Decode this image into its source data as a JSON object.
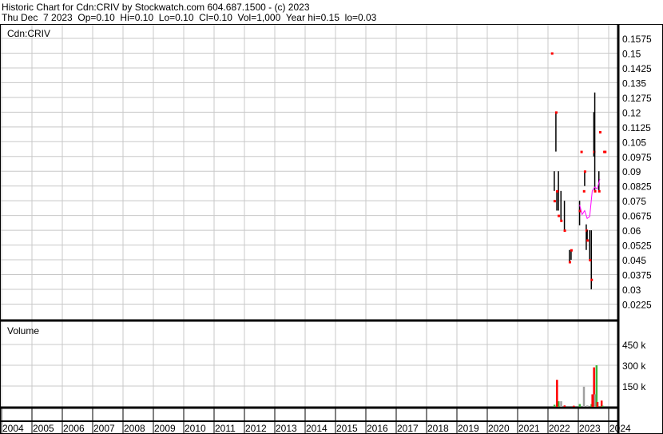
{
  "header": {
    "title": "Historic Chart for Cdn:CRIV by Stockwatch.com 604.687.1500 - (c) 2023",
    "quote": "Thu Dec  7 2023  Op=0.10  Hi=0.10  Lo=0.10  Cl=0.10  Vol=1,000  Year hi=0.15  lo=0.03"
  },
  "chart_data": [
    {
      "type": "ohlc",
      "title": "Cdn:CRIV",
      "ylim": [
        0.0225,
        0.1575
      ],
      "yticks": [
        "0.1575",
        "0.15",
        "0.1425",
        "0.135",
        "0.1275",
        "0.12",
        "0.1125",
        "0.105",
        "0.0975",
        "0.09",
        "0.0825",
        "0.075",
        "0.0675",
        "0.06",
        "0.0525",
        "0.045",
        "0.0375",
        "0.03",
        "0.0225"
      ],
      "bars": [
        {
          "date": "2022-02",
          "high": 0.15,
          "low": 0.15,
          "close": 0.15
        },
        {
          "date": "2022-03",
          "high": 0.12,
          "low": 0.1,
          "close": 0.12
        },
        {
          "date": "2022-03",
          "high": 0.09,
          "low": 0.08,
          "close": 0.075
        },
        {
          "date": "2022-04",
          "high": 0.09,
          "low": 0.07,
          "close": 0.0675
        },
        {
          "date": "2022-04",
          "high": 0.08,
          "low": 0.07,
          "close": 0.08
        },
        {
          "date": "2022-05",
          "high": 0.08,
          "low": 0.065,
          "close": 0.065
        },
        {
          "date": "2022-07",
          "high": 0.075,
          "low": 0.06,
          "close": 0.06
        },
        {
          "date": "2022-09",
          "high": 0.05,
          "low": 0.045,
          "close": 0.05
        },
        {
          "date": "2022-09",
          "high": 0.05,
          "low": 0.044,
          "close": 0.044
        },
        {
          "date": "2023-01",
          "high": 0.1,
          "low": 0.1,
          "close": 0.1
        },
        {
          "date": "2023-01",
          "high": 0.075,
          "low": 0.0625,
          "close": 0.07
        },
        {
          "date": "2023-02",
          "high": 0.08,
          "low": 0.08,
          "close": 0.08
        },
        {
          "date": "2023-03",
          "high": 0.09,
          "low": 0.0825,
          "close": 0.09
        },
        {
          "date": "2023-03",
          "high": 0.063,
          "low": 0.05,
          "close": 0.06
        },
        {
          "date": "2023-04",
          "high": 0.06,
          "low": 0.055,
          "close": 0.055
        },
        {
          "date": "2023-05",
          "high": 0.06,
          "low": 0.03,
          "close": 0.035
        },
        {
          "date": "2023-05",
          "high": 0.06,
          "low": 0.045,
          "close": 0.045
        },
        {
          "date": "2023-06",
          "high": 0.12,
          "low": 0.0975,
          "close": 0.1
        },
        {
          "date": "2023-07",
          "high": 0.13,
          "low": 0.08,
          "close": 0.08
        },
        {
          "date": "2023-08",
          "high": 0.09,
          "low": 0.08,
          "close": 0.08
        },
        {
          "date": "2023-09",
          "high": 0.11,
          "low": 0.11,
          "close": 0.11
        },
        {
          "date": "2023-10",
          "high": 0.1,
          "low": 0.1,
          "close": 0.1
        },
        {
          "date": "2023-11",
          "high": 0.1,
          "low": 0.1,
          "close": 0.1
        }
      ],
      "moving_average": {
        "color": "#ff00ff",
        "points": [
          [
            "2023-01",
            0.073
          ],
          [
            "2023-02",
            0.068
          ],
          [
            "2023-03",
            0.07
          ],
          [
            "2023-04",
            0.066
          ],
          [
            "2023-05",
            0.067
          ],
          [
            "2023-06",
            0.08
          ],
          [
            "2023-07",
            0.082
          ],
          [
            "2023-08",
            0.081
          ],
          [
            "2023-09",
            0.086
          ]
        ]
      }
    },
    {
      "type": "bar",
      "title": "Volume",
      "yticks": [
        "450 k",
        "300 k",
        "150 k"
      ],
      "ylim": [
        0,
        560000
      ],
      "colors": {
        "up": "#3cb43c",
        "down": "#ff0000",
        "flat": "#a0a0a0"
      },
      "bars": [
        {
          "date": "2022-03",
          "value": 15000,
          "dir": "up"
        },
        {
          "date": "2022-04",
          "value": 40000,
          "dir": "up"
        },
        {
          "date": "2022-04",
          "value": 195000,
          "dir": "down"
        },
        {
          "date": "2022-05",
          "value": 40000,
          "dir": "flat"
        },
        {
          "date": "2022-07",
          "value": 10000,
          "dir": "down"
        },
        {
          "date": "2022-10",
          "value": 8000,
          "dir": "down"
        },
        {
          "date": "2023-01",
          "value": 20000,
          "dir": "up"
        },
        {
          "date": "2023-02",
          "value": 145000,
          "dir": "flat"
        },
        {
          "date": "2023-04",
          "value": 10000,
          "dir": "flat"
        },
        {
          "date": "2023-05",
          "value": 20000,
          "dir": "up"
        },
        {
          "date": "2023-06",
          "value": 90000,
          "dir": "down"
        },
        {
          "date": "2023-06",
          "value": 285000,
          "dir": "down"
        },
        {
          "date": "2023-07",
          "value": 90000,
          "dir": "flat"
        },
        {
          "date": "2023-07",
          "value": 300000,
          "dir": "up"
        },
        {
          "date": "2023-08",
          "value": 35000,
          "dir": "down"
        },
        {
          "date": "2023-09",
          "value": 45000,
          "dir": "down"
        },
        {
          "date": "2023-10",
          "value": 8000,
          "dir": "up"
        }
      ]
    }
  ],
  "years": [
    "2004",
    "2005",
    "2006",
    "2007",
    "2008",
    "2009",
    "2010",
    "2011",
    "2012",
    "2013",
    "2014",
    "2015",
    "2016",
    "2017",
    "2018",
    "2019",
    "2020",
    "2021",
    "2022",
    "2023",
    "2024"
  ]
}
